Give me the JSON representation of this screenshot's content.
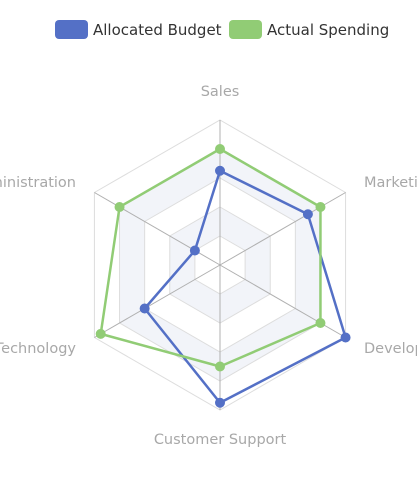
{
  "chart_data": {
    "type": "radar",
    "indicators": [
      "Sales",
      "Marketing",
      "Development",
      "Customer Support",
      "Information Technology",
      "Administration"
    ],
    "max": 100,
    "series": [
      {
        "name": "Allocated Budget",
        "color": "#5470c6",
        "values": [
          65,
          70,
          100,
          95,
          60,
          20
        ]
      },
      {
        "name": "Actual Spending",
        "color": "#91cc75",
        "values": [
          80,
          80,
          80,
          70,
          95,
          80
        ]
      }
    ],
    "legend_position": "top-center",
    "split_number": 5,
    "split_area_colors": [
      "#ffffff",
      "#f2f4f9"
    ],
    "grid_line_color": "#dddddd",
    "axis_line_color": "#b0b0b0"
  }
}
